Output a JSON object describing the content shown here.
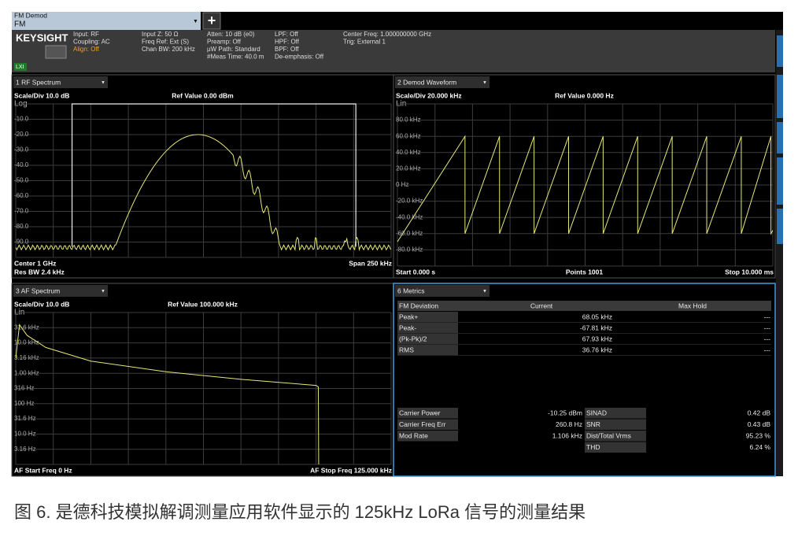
{
  "topbar": {
    "mode": "FM Demod",
    "submode": "FM"
  },
  "header": {
    "logo": "KEYSIGHT",
    "badge": "LXI",
    "columns": [
      [
        "Input: RF",
        "Coupling: AC",
        "Align: Off"
      ],
      [
        "Input Z: 50 Ω",
        "Freq Ref: Ext (S)",
        "Chan BW: 200 kHz"
      ],
      [
        "Atten: 10 dB (e0)",
        "Preamp: Off",
        "µW Path: Standard",
        "#Meas Time: 40.0 m"
      ],
      [
        "LPF: Off",
        "HPF: Off",
        "BPF: Off",
        "De-emphasis: Off"
      ],
      [
        "Center Freq: 1.000000000 GHz",
        "Trig: External 1"
      ]
    ]
  },
  "panels": [
    {
      "title": "1 RF Spectrum",
      "scale_div": "Scale/Div 10.0 dB",
      "ref_value": "Ref Value 0.00 dBm",
      "scale_type": "Log",
      "y_labels": [
        "-10.0",
        "-20.0",
        "-30.0",
        "-40.0",
        "-50.0",
        "-60.0",
        "-70.0",
        "-80.0",
        "-90.0"
      ],
      "footer_left": [
        "Center 1 GHz",
        "Res BW 2.4 kHz"
      ],
      "footer_right": [
        "Span 250 kHz"
      ]
    },
    {
      "title": "2 Demod Waveform",
      "scale_div": "Scale/Div 20.000 kHz",
      "ref_value": "Ref Value 0.000 Hz",
      "scale_type": "Lin",
      "y_labels": [
        "80.0 kHz",
        "60.0 kHz",
        "40.0 kHz",
        "20.0 kHz",
        "0 Hz",
        "-20.0 kHz",
        "-40.0 kHz",
        "-60.0 kHz",
        "-80.0 kHz"
      ],
      "footer_left": [
        "Start 0.000 s"
      ],
      "footer_center": [
        "Points 1001"
      ],
      "footer_right": [
        "Stop 10.000 ms"
      ]
    },
    {
      "title": "3 AF Spectrum",
      "scale_div": "Scale/Div 10.0 dB",
      "ref_value": "Ref Value 100.000 kHz",
      "scale_type": "Lin",
      "y_labels": [
        "31.6 kHz",
        "10.0 kHz",
        "3.16 kHz",
        "1.00 kHz",
        "316 Hz",
        "100 Hz",
        "31.6 Hz",
        "10.0 Hz",
        "3.16 Hz"
      ],
      "footer_left": [
        "AF Start Freq 0 Hz"
      ],
      "footer_right": [
        "AF Stop Freq 125.000 kHz"
      ]
    }
  ],
  "metrics": {
    "title": "6 Metrics",
    "table": {
      "header": [
        "FM Deviation",
        "Current",
        "Max Hold"
      ],
      "rows": [
        [
          "Peak+",
          "68.05 kHz",
          "---"
        ],
        [
          "Peak-",
          "-67.81 kHz",
          "---"
        ],
        [
          "(Pk-Pk)/2",
          "67.93 kHz",
          "---"
        ],
        [
          "RMS",
          "36.76 kHz",
          "---"
        ]
      ]
    },
    "summary_left": [
      [
        "Carrier Power",
        "-10.25 dBm"
      ],
      [
        "Carrier Freq Err",
        "260.8 Hz"
      ],
      [
        "Mod Rate",
        "1.106 kHz"
      ]
    ],
    "summary_right": [
      [
        "SINAD",
        "0.42 dB"
      ],
      [
        "SNR",
        "0.43 dB"
      ],
      [
        "Dist/Total Vrms",
        "95.23 %"
      ],
      [
        "THD",
        "6.24 %"
      ]
    ]
  },
  "caption": "图 6. 是德科技模拟解调测量应用软件显示的 125kHz LoRa 信号的测量结果"
}
